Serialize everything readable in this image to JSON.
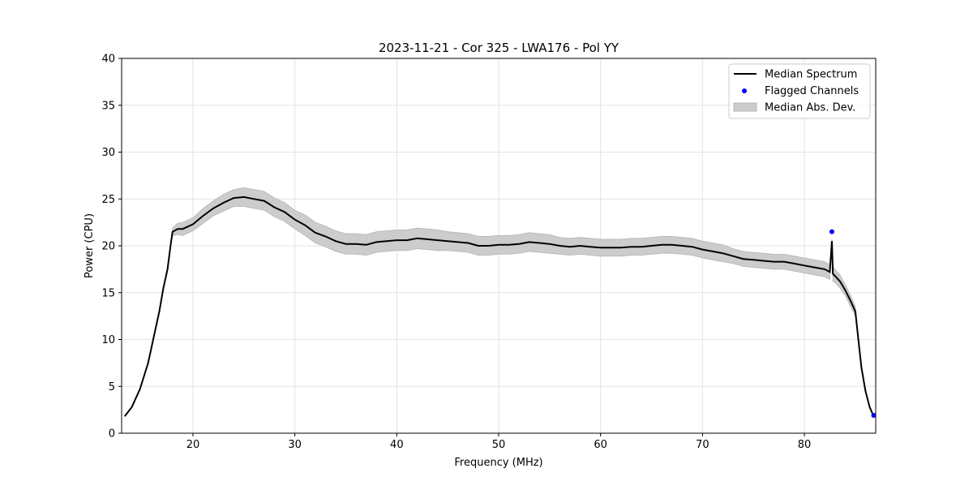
{
  "chart_data": {
    "type": "line",
    "title": "2023-11-21 - Cor 325 - LWA176 - Pol YY",
    "xlabel": "Frequency (MHz)",
    "ylabel": "Power (CPU)",
    "xlim": [
      13,
      87
    ],
    "ylim": [
      0,
      40
    ],
    "xticks": [
      20,
      30,
      40,
      50,
      60,
      70,
      80
    ],
    "yticks": [
      0,
      5,
      10,
      15,
      20,
      25,
      30,
      35,
      40
    ],
    "grid": true,
    "legend": {
      "placement": "top-right",
      "entries": [
        "Median Spectrum",
        "Flagged Channels",
        "Median Abs. Dev."
      ]
    },
    "series": [
      {
        "name": "Median Spectrum",
        "color": "#000000",
        "x": [
          13.3,
          14,
          14.8,
          15.6,
          16.2,
          16.7,
          17.1,
          17.5,
          17.8,
          18,
          18.5,
          19,
          20,
          21,
          22,
          23,
          24,
          25,
          26,
          27,
          28,
          29,
          30,
          31,
          32,
          33,
          34,
          35,
          36,
          37,
          38,
          39,
          40,
          41,
          42,
          43,
          44,
          45,
          46,
          47,
          48,
          49,
          50,
          51,
          52,
          53,
          54,
          55,
          56,
          57,
          58,
          59,
          60,
          61,
          62,
          63,
          64,
          65,
          66,
          67,
          68,
          69,
          70,
          71,
          72,
          73,
          74,
          75,
          76,
          77,
          78,
          79,
          80,
          81,
          82,
          82.5,
          82.7,
          82.8,
          83,
          83.5,
          84,
          84.5,
          85,
          85.3,
          85.6,
          86,
          86.4,
          86.8
        ],
        "y": [
          1.8,
          2.8,
          4.7,
          7.5,
          10.5,
          13,
          15.5,
          17.5,
          20,
          21.5,
          21.8,
          21.8,
          22.3,
          23.2,
          24,
          24.6,
          25.1,
          25.2,
          25,
          24.8,
          24.1,
          23.6,
          22.8,
          22.2,
          21.4,
          21,
          20.5,
          20.2,
          20.2,
          20.1,
          20.4,
          20.5,
          20.6,
          20.6,
          20.8,
          20.7,
          20.6,
          20.5,
          20.4,
          20.3,
          20.0,
          20.0,
          20.1,
          20.1,
          20.2,
          20.4,
          20.3,
          20.2,
          20.0,
          19.9,
          20.0,
          19.9,
          19.8,
          19.8,
          19.8,
          19.9,
          19.9,
          20.0,
          20.1,
          20.1,
          20.0,
          19.9,
          19.6,
          19.4,
          19.2,
          18.9,
          18.6,
          18.5,
          18.4,
          18.3,
          18.3,
          18.1,
          17.9,
          17.7,
          17.5,
          17.2,
          20.5,
          17,
          16.8,
          16.2,
          15.3,
          14.2,
          13,
          10,
          7,
          4.5,
          2.8,
          1.8
        ]
      },
      {
        "name": "Median Abs. Dev.",
        "color": "#cccccc",
        "mad": [
          0,
          0,
          0,
          0,
          0,
          0,
          0,
          0,
          0.1,
          0.4,
          0.6,
          0.7,
          0.7,
          0.8,
          0.8,
          0.9,
          0.9,
          1.0,
          1.0,
          1.0,
          1.0,
          1.0,
          1.0,
          1.1,
          1.1,
          1.1,
          1.1,
          1.1,
          1.1,
          1.1,
          1.1,
          1.1,
          1.1,
          1.1,
          1.1,
          1.1,
          1.1,
          1.0,
          1.0,
          1.0,
          1.0,
          1.0,
          1.0,
          1.0,
          1.0,
          1.0,
          1.0,
          1.0,
          0.9,
          0.9,
          0.9,
          0.9,
          0.9,
          0.9,
          0.9,
          0.9,
          0.9,
          0.9,
          0.9,
          0.9,
          0.9,
          0.9,
          0.9,
          0.9,
          0.9,
          0.8,
          0.8,
          0.8,
          0.8,
          0.8,
          0.8,
          0.8,
          0.8,
          0.8,
          0.8,
          0.8,
          0.2,
          0.8,
          0.7,
          0.7,
          0.6,
          0.6,
          0.5,
          0.2,
          0.1,
          0,
          0,
          0
        ]
      },
      {
        "name": "Flagged Channels",
        "color": "#0000ff",
        "x": [
          82.7,
          86.8
        ],
        "y": [
          21.5,
          1.9
        ]
      }
    ]
  }
}
